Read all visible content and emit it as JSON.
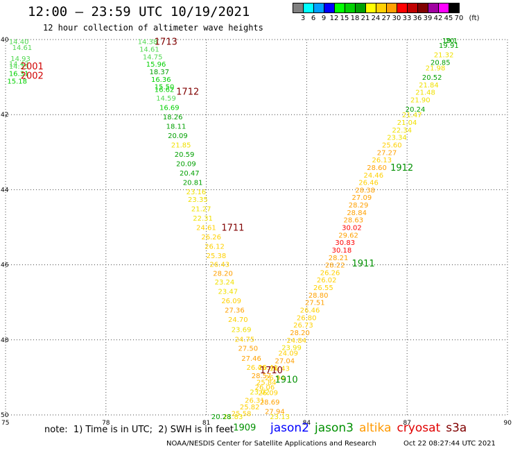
{
  "header": {
    "title": "12:00 – 23:59 UTC 10/19/2021",
    "subtitle": "12 hour collection of altimeter wave heights"
  },
  "color_scale": {
    "unit": "(ft)",
    "colors": [
      "#808080",
      "#00ffff",
      "#00a0ff",
      "#0000ff",
      "#00ff00",
      "#00d000",
      "#00a000",
      "#ffff00",
      "#ffd000",
      "#ffa000",
      "#ff0000",
      "#c00000",
      "#800000",
      "#a000a0",
      "#ff00ff",
      "#000000"
    ],
    "labels": [
      "3",
      "6",
      "9",
      "12",
      "15",
      "18",
      "21",
      "24",
      "27",
      "30",
      "33",
      "36",
      "39",
      "42",
      "45",
      "70"
    ]
  },
  "chart_data": {
    "type": "scatter",
    "xlim": [
      75,
      90
    ],
    "ylim": [
      -50,
      -40
    ],
    "x_ticks": [
      "75",
      "78",
      "81",
      "84",
      "87",
      "90"
    ],
    "y_ticks": [
      "40",
      "42",
      "44",
      "46",
      "48",
      "50"
    ],
    "grid": true,
    "points": [
      {
        "lon": 75.1,
        "lat": -40.05,
        "v": "14.40"
      },
      {
        "lon": 75.2,
        "lat": -40.2,
        "v": "14.61"
      },
      {
        "lon": 75.15,
        "lat": -40.5,
        "v": "14.93"
      },
      {
        "lon": 75.1,
        "lat": -40.64,
        "v": "14.42"
      },
      {
        "lon": 75.1,
        "lat": -40.7,
        "v": "14.33"
      },
      {
        "lon": 75.1,
        "lat": -40.9,
        "v": "16.31"
      },
      {
        "lon": 75.05,
        "lat": -41.1,
        "v": "15.18"
      },
      {
        "lon": 78.95,
        "lat": -40.05,
        "v": "14.38"
      },
      {
        "lon": 79.0,
        "lat": -40.25,
        "v": "14.61"
      },
      {
        "lon": 79.1,
        "lat": -40.45,
        "v": "14.75"
      },
      {
        "lon": 79.2,
        "lat": -40.65,
        "v": "15.96"
      },
      {
        "lon": 79.3,
        "lat": -40.85,
        "v": "18.37"
      },
      {
        "lon": 79.35,
        "lat": -41.05,
        "v": "16.36"
      },
      {
        "lon": 79.45,
        "lat": -41.25,
        "v": "15.50"
      },
      {
        "lon": 79.45,
        "lat": -41.32,
        "v": "16.62"
      },
      {
        "lon": 79.5,
        "lat": -41.55,
        "v": "14.59"
      },
      {
        "lon": 79.6,
        "lat": -41.8,
        "v": "16.69"
      },
      {
        "lon": 79.7,
        "lat": -42.05,
        "v": "18.26"
      },
      {
        "lon": 79.8,
        "lat": -42.3,
        "v": "18.11"
      },
      {
        "lon": 79.85,
        "lat": -42.55,
        "v": "20.09"
      },
      {
        "lon": 79.95,
        "lat": -42.8,
        "v": "21.85"
      },
      {
        "lon": 80.05,
        "lat": -43.05,
        "v": "20.59"
      },
      {
        "lon": 80.1,
        "lat": -43.3,
        "v": "20.09"
      },
      {
        "lon": 80.2,
        "lat": -43.55,
        "v": "20.47"
      },
      {
        "lon": 80.3,
        "lat": -43.8,
        "v": "20.81"
      },
      {
        "lon": 80.4,
        "lat": -44.05,
        "v": "23.16"
      },
      {
        "lon": 80.45,
        "lat": -44.25,
        "v": "23.35"
      },
      {
        "lon": 80.55,
        "lat": -44.5,
        "v": "21.27"
      },
      {
        "lon": 80.6,
        "lat": -44.75,
        "v": "22.31"
      },
      {
        "lon": 80.7,
        "lat": -45.0,
        "v": "24.61"
      },
      {
        "lon": 80.85,
        "lat": -45.25,
        "v": "26.26"
      },
      {
        "lon": 80.95,
        "lat": -45.5,
        "v": "26.12"
      },
      {
        "lon": 81.0,
        "lat": -45.75,
        "v": "25.38"
      },
      {
        "lon": 81.1,
        "lat": -45.98,
        "v": "26.43"
      },
      {
        "lon": 81.2,
        "lat": -46.22,
        "v": "28.20"
      },
      {
        "lon": 81.25,
        "lat": -46.45,
        "v": "23.24"
      },
      {
        "lon": 81.35,
        "lat": -46.7,
        "v": "23.47"
      },
      {
        "lon": 81.45,
        "lat": -46.95,
        "v": "26.09"
      },
      {
        "lon": 81.55,
        "lat": -47.2,
        "v": "27.36"
      },
      {
        "lon": 81.65,
        "lat": -47.45,
        "v": "24.70"
      },
      {
        "lon": 81.75,
        "lat": -47.72,
        "v": "23.69"
      },
      {
        "lon": 81.85,
        "lat": -47.98,
        "v": "24.75"
      },
      {
        "lon": 81.95,
        "lat": -48.22,
        "v": "27.50"
      },
      {
        "lon": 82.05,
        "lat": -48.48,
        "v": "27.46"
      },
      {
        "lon": 82.2,
        "lat": -48.72,
        "v": "26.46"
      },
      {
        "lon": 82.55,
        "lat": -48.72,
        "v": "26.41"
      },
      {
        "lon": 82.35,
        "lat": -48.95,
        "v": "28.57"
      },
      {
        "lon": 82.5,
        "lat": -49.12,
        "v": "25.84"
      },
      {
        "lon": 82.45,
        "lat": -49.25,
        "v": "26.06"
      },
      {
        "lon": 82.3,
        "lat": -49.38,
        "v": "23.02"
      },
      {
        "lon": 82.55,
        "lat": -49.4,
        "v": "26.09"
      },
      {
        "lon": 82.15,
        "lat": -49.6,
        "v": "26.31"
      },
      {
        "lon": 82.0,
        "lat": -49.78,
        "v": "25.82"
      },
      {
        "lon": 82.6,
        "lat": -49.65,
        "v": "28.69"
      },
      {
        "lon": 81.75,
        "lat": -49.95,
        "v": "25.58"
      },
      {
        "lon": 82.75,
        "lat": -49.9,
        "v": "27.94"
      },
      {
        "lon": 81.5,
        "lat": -50.12,
        "v": "21.83"
      },
      {
        "lon": 82.9,
        "lat": -50.15,
        "v": "23.13"
      },
      {
        "lon": 81.15,
        "lat": -50.32,
        "v": "20.28"
      },
      {
        "lon": 82.75,
        "lat": -49.0,
        "v": "26.94"
      },
      {
        "lon": 82.9,
        "lat": -48.75,
        "v": "26.43"
      },
      {
        "lon": 83.05,
        "lat": -48.55,
        "v": "27.04"
      },
      {
        "lon": 83.15,
        "lat": -48.35,
        "v": "24.09"
      },
      {
        "lon": 83.25,
        "lat": -48.2,
        "v": "23.99"
      },
      {
        "lon": 83.4,
        "lat": -48.0,
        "v": "24.84"
      },
      {
        "lon": 83.5,
        "lat": -47.8,
        "v": "28.20"
      },
      {
        "lon": 83.6,
        "lat": -47.6,
        "v": "26.73"
      },
      {
        "lon": 83.7,
        "lat": -47.4,
        "v": "26.80"
      },
      {
        "lon": 83.8,
        "lat": -47.2,
        "v": "26.46"
      },
      {
        "lon": 83.95,
        "lat": -47.0,
        "v": "27.51"
      },
      {
        "lon": 84.05,
        "lat": -46.8,
        "v": "28.80"
      },
      {
        "lon": 84.2,
        "lat": -46.6,
        "v": "26.55"
      },
      {
        "lon": 84.3,
        "lat": -46.4,
        "v": "26.02"
      },
      {
        "lon": 84.4,
        "lat": -46.2,
        "v": "26.26"
      },
      {
        "lon": 84.55,
        "lat": -46.0,
        "v": "28.22"
      },
      {
        "lon": 84.65,
        "lat": -45.8,
        "v": "28.21"
      },
      {
        "lon": 84.75,
        "lat": -45.6,
        "v": "30.18"
      },
      {
        "lon": 84.85,
        "lat": -45.4,
        "v": "30.83"
      },
      {
        "lon": 84.95,
        "lat": -45.2,
        "v": "29.62"
      },
      {
        "lon": 85.05,
        "lat": -45.0,
        "v": "30.02"
      },
      {
        "lon": 85.1,
        "lat": -44.8,
        "v": "28.63"
      },
      {
        "lon": 85.2,
        "lat": -44.6,
        "v": "28.84"
      },
      {
        "lon": 85.25,
        "lat": -44.4,
        "v": "28.29"
      },
      {
        "lon": 85.35,
        "lat": -44.2,
        "v": "27.09"
      },
      {
        "lon": 85.45,
        "lat": -44.0,
        "v": "28.38"
      },
      {
        "lon": 85.55,
        "lat": -43.8,
        "v": "26.46"
      },
      {
        "lon": 85.7,
        "lat": -43.6,
        "v": "24.46"
      },
      {
        "lon": 85.8,
        "lat": -43.4,
        "v": "28.60"
      },
      {
        "lon": 85.95,
        "lat": -43.2,
        "v": "26.13"
      },
      {
        "lon": 86.1,
        "lat": -43.0,
        "v": "27.27"
      },
      {
        "lon": 86.25,
        "lat": -42.8,
        "v": "25.60"
      },
      {
        "lon": 86.4,
        "lat": -42.6,
        "v": "23.34"
      },
      {
        "lon": 86.55,
        "lat": -42.4,
        "v": "22.34"
      },
      {
        "lon": 86.7,
        "lat": -42.2,
        "v": "21.04"
      },
      {
        "lon": 86.85,
        "lat": -42.0,
        "v": "21.47"
      },
      {
        "lon": 86.95,
        "lat": -41.85,
        "v": "20.24"
      },
      {
        "lon": 87.1,
        "lat": -41.6,
        "v": "21.90"
      },
      {
        "lon": 87.25,
        "lat": -41.4,
        "v": "21.48"
      },
      {
        "lon": 87.35,
        "lat": -41.2,
        "v": "21.84"
      },
      {
        "lon": 87.45,
        "lat": -41.0,
        "v": "20.52"
      },
      {
        "lon": 87.55,
        "lat": -40.75,
        "v": "21.98"
      },
      {
        "lon": 87.7,
        "lat": -40.6,
        "v": "20.85"
      },
      {
        "lon": 87.8,
        "lat": -40.4,
        "v": "21.32"
      },
      {
        "lon": 87.95,
        "lat": -40.15,
        "v": "19.91"
      },
      {
        "lon": 88.05,
        "lat": -40.0,
        "v": "19.1"
      },
      {
        "lon": 88.15,
        "lat": -39.85,
        "v": "20"
      }
    ],
    "track_labels": [
      {
        "lon": 79.45,
        "lat": -40.05,
        "text": "1713",
        "color": "#800000"
      },
      {
        "lon": 75.45,
        "lat": -40.7,
        "text": "2001",
        "color": "#d00000"
      },
      {
        "lon": 75.45,
        "lat": -40.95,
        "text": "2002",
        "color": "#d00000"
      },
      {
        "lon": 80.1,
        "lat": -41.38,
        "text": "1712",
        "color": "#800000"
      },
      {
        "lon": 81.45,
        "lat": -45.0,
        "text": "1711",
        "color": "#800000"
      },
      {
        "lon": 82.6,
        "lat": -48.8,
        "text": "1710",
        "color": "#800000"
      },
      {
        "lon": 83.05,
        "lat": -49.05,
        "text": "1910",
        "color": "#009000"
      },
      {
        "lon": 81.8,
        "lat": -50.32,
        "text": "1909",
        "color": "#009000"
      },
      {
        "lon": 85.35,
        "lat": -45.95,
        "text": "1911",
        "color": "#009000"
      },
      {
        "lon": 86.5,
        "lat": -43.4,
        "text": "1912",
        "color": "#009000"
      }
    ]
  },
  "footer": {
    "note": "note:  1) Time is in UTC;  2) SWH is in feet",
    "satellites": [
      {
        "name": "jason2",
        "color": "#0000ff"
      },
      {
        "name": "jason3",
        "color": "#009000"
      },
      {
        "name": "altika",
        "color": "#ff9900"
      },
      {
        "name": "cryosat",
        "color": "#e00000"
      },
      {
        "name": "s3a",
        "color": "#800000"
      }
    ],
    "credit": "NOAA/NESDIS Center for Satellite Applications and Research",
    "timestamp": "Oct 22 08:27:44 UTC 2021"
  }
}
